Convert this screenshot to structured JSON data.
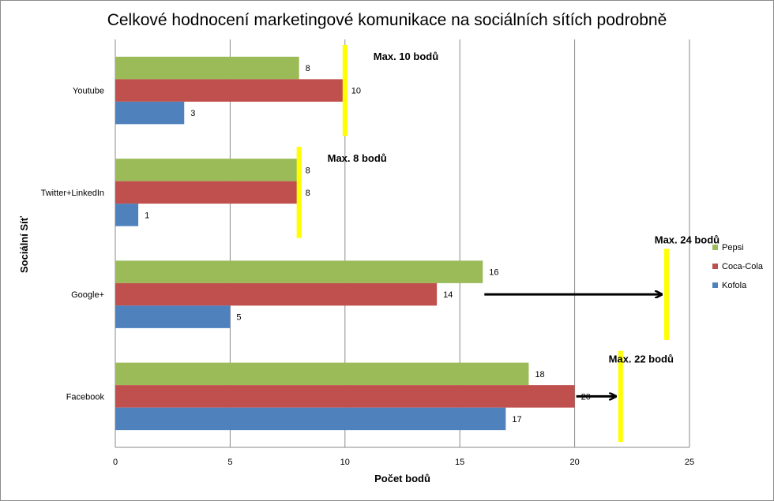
{
  "chart_data": {
    "type": "bar",
    "orientation": "horizontal",
    "title": "Celkové hodnocení marketingové komunikace na sociálních sítích podrobně",
    "xlabel": "Počet bodů",
    "ylabel": "Sociální Síť",
    "xlim": [
      0,
      25
    ],
    "xticks": [
      0,
      5,
      10,
      15,
      20,
      25
    ],
    "categories": [
      "Youtube",
      "Twitter+LinkedIn",
      "Google+",
      "Facebook"
    ],
    "series": [
      {
        "name": "Pepsi",
        "color": "#9BBB59",
        "values": [
          8,
          8,
          16,
          18
        ]
      },
      {
        "name": "Coca-Cola",
        "color": "#C0504D",
        "values": [
          10,
          8,
          14,
          20
        ]
      },
      {
        "name": "Kofola",
        "color": "#4F81BD",
        "values": [
          3,
          1,
          5,
          17
        ]
      }
    ],
    "grid": true,
    "legend": "right",
    "annotations": [
      {
        "category": "Youtube",
        "text": "Max. 10 bodů",
        "max": 10
      },
      {
        "category": "Twitter+LinkedIn",
        "text": "Max. 8 bodů",
        "max": 8
      },
      {
        "category": "Google+",
        "text": "Max. 24 bodů",
        "max": 24
      },
      {
        "category": "Facebook",
        "text": "Max. 22 bodů",
        "max": 22
      }
    ],
    "marker_color": "#FFFF00"
  }
}
